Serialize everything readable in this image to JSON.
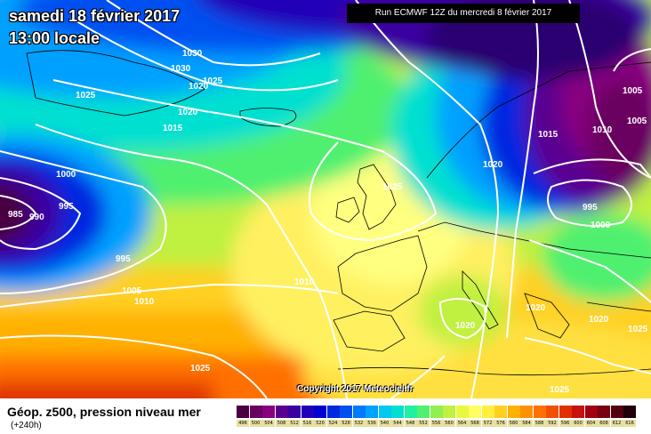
{
  "title": {
    "date": "samedi 18 février 2017",
    "time": "13:00 locale"
  },
  "run_info": "Run ECMWF 12Z du mercredi 8 février 2017",
  "copyright": "Copyright 2017 Meteociel.fr",
  "footer": {
    "title": "Géop. z500, pression niveau mer",
    "lead": "(+240h)"
  },
  "isobar_labels": [
    {
      "id": "1030a",
      "text": "1030"
    },
    {
      "id": "1030b",
      "text": "1030"
    },
    {
      "id": "1025a",
      "text": "1025"
    },
    {
      "id": "1020a",
      "text": "1020"
    },
    {
      "id": "1025b",
      "text": "1025"
    },
    {
      "id": "1020b",
      "text": "1020"
    },
    {
      "id": "1015a",
      "text": "1015"
    },
    {
      "id": "1000a",
      "text": "1000"
    },
    {
      "id": "995a",
      "text": "995"
    },
    {
      "id": "985a",
      "text": "985"
    },
    {
      "id": "990a",
      "text": "990"
    },
    {
      "id": "995b",
      "text": "995"
    },
    {
      "id": "1005a",
      "text": "1005"
    },
    {
      "id": "1010a",
      "text": "1010"
    },
    {
      "id": "1010b",
      "text": "1010"
    },
    {
      "id": "1025c",
      "text": "1025"
    },
    {
      "id": "1020c",
      "text": "1020"
    },
    {
      "id": "1015b",
      "text": "1015"
    },
    {
      "id": "1010c",
      "text": "1010"
    },
    {
      "id": "1005b",
      "text": "1005"
    },
    {
      "id": "1005c",
      "text": "1005"
    },
    {
      "id": "995c",
      "text": "995"
    },
    {
      "id": "1000b",
      "text": "1000"
    },
    {
      "id": "1020d",
      "text": "1020"
    },
    {
      "id": "1020e",
      "text": "1020"
    },
    {
      "id": "1020f",
      "text": "1020"
    },
    {
      "id": "1025d",
      "text": "1025"
    },
    {
      "id": "1025e",
      "text": "1025"
    },
    {
      "id": "1025f",
      "text": "1025"
    }
  ],
  "color_scale": {
    "labels": [
      "496",
      "500",
      "504",
      "508",
      "512",
      "516",
      "520",
      "524",
      "528",
      "532",
      "536",
      "540",
      "544",
      "548",
      "552",
      "556",
      "560",
      "564",
      "568",
      "572",
      "576",
      "580",
      "584",
      "588",
      "592",
      "596",
      "600",
      "604",
      "608",
      "612",
      "616"
    ],
    "colors": [
      "#4a0040",
      "#6a0060",
      "#880080",
      "#5a0090",
      "#3a00a0",
      "#2000b8",
      "#0000d0",
      "#0028e0",
      "#0050f0",
      "#0078ff",
      "#00a0ff",
      "#00c8f0",
      "#00e0d0",
      "#20f0a0",
      "#50f070",
      "#90f050",
      "#c0f040",
      "#e8f840",
      "#ffff60",
      "#fff040",
      "#ffd020",
      "#ffb000",
      "#ff9000",
      "#ff7000",
      "#f05000",
      "#e03000",
      "#c81010",
      "#a00010",
      "#780010",
      "#500010",
      "#200008"
    ]
  },
  "colors": {
    "isobar": "#ffffff",
    "land_outline": "#000000"
  }
}
